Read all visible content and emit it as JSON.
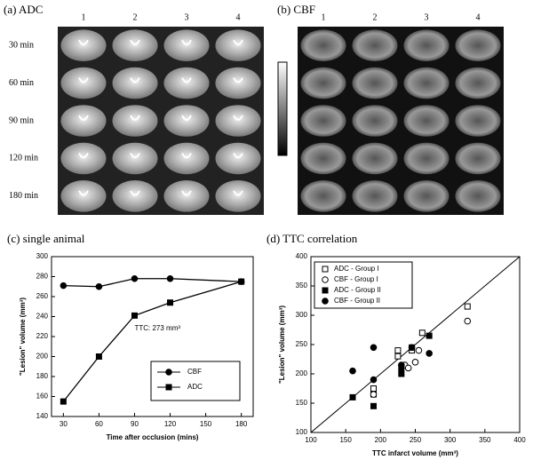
{
  "panels": {
    "a": {
      "label": "(a) ADC",
      "columns": [
        "1",
        "2",
        "3",
        "4"
      ],
      "rows": [
        "30 min",
        "60 min",
        "90 min",
        "120 min",
        "180 min"
      ]
    },
    "b": {
      "label": "(b) CBF",
      "columns": [
        "1",
        "2",
        "3",
        "4"
      ]
    }
  },
  "chart_data": [
    {
      "type": "line",
      "title": "(c) single animal",
      "x_label": "Time after occlusion (mins)",
      "y_label": "\"Lesion\" volume (mm³)",
      "x": [
        30,
        60,
        90,
        120,
        180
      ],
      "xlim": [
        20,
        190
      ],
      "xticks": [
        30,
        60,
        90,
        120,
        150,
        180
      ],
      "ylim": [
        140,
        300
      ],
      "yticks": [
        140,
        160,
        180,
        200,
        220,
        240,
        260,
        280,
        300
      ],
      "series": [
        {
          "name": "CBF",
          "color": "#000",
          "marker": "circle",
          "values": [
            271,
            270,
            278,
            278,
            275
          ]
        },
        {
          "name": "ADC",
          "color": "#000",
          "marker": "square",
          "values": [
            155,
            200,
            241,
            254,
            275
          ]
        }
      ],
      "annotation": "TTC: 273 mm³",
      "legend": "lower right"
    },
    {
      "type": "scatter",
      "title": "(d) TTC correlation",
      "x_label": "TTC infarct volume (mm³)",
      "y_label": "\"Lesion\" volume (mm³)",
      "xlim": [
        100,
        400
      ],
      "xticks": [
        100,
        150,
        200,
        250,
        300,
        350,
        400
      ],
      "ylim": [
        100,
        400
      ],
      "yticks": [
        100,
        150,
        200,
        250,
        300,
        350,
        400
      ],
      "identity_line": true,
      "legend": "upper left",
      "series": [
        {
          "name": "ADC - Group I",
          "color": "#000",
          "marker": "square",
          "filled": false,
          "x": [
            190,
            190,
            225,
            225,
            245,
            260,
            325
          ],
          "values": [
            165,
            175,
            230,
            240,
            240,
            270,
            315
          ]
        },
        {
          "name": "CBF - Group I",
          "color": "#000",
          "marker": "circle",
          "filled": false,
          "x": [
            190,
            235,
            240,
            250,
            255,
            325
          ],
          "values": [
            165,
            215,
            210,
            220,
            240,
            290
          ]
        },
        {
          "name": "ADC - Group II",
          "color": "#000",
          "marker": "square",
          "filled": true,
          "x": [
            160,
            190,
            230,
            230,
            245,
            270
          ],
          "values": [
            160,
            145,
            200,
            210,
            245,
            265
          ]
        },
        {
          "name": "CBF - Group II",
          "color": "#000",
          "marker": "circle",
          "filled": true,
          "x": [
            160,
            190,
            190,
            230,
            245,
            270
          ],
          "values": [
            205,
            245,
            190,
            215,
            245,
            235
          ]
        }
      ]
    }
  ]
}
